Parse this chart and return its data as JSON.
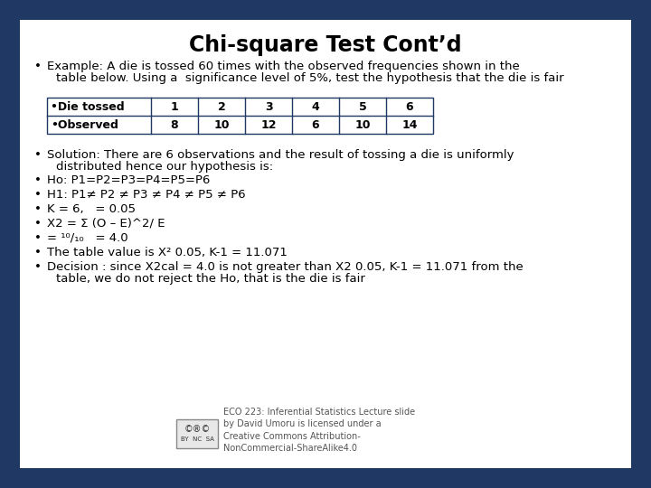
{
  "title": "Chi-square Test Cont’d",
  "outer_bg": "#1f3864",
  "inner_bg": "#ffffff",
  "border_color": "#1f3864",
  "title_color": "#000000",
  "title_fontsize": 17,
  "bullet_color": "#000000",
  "bullet_fontsize": 9.5,
  "table_header_row": [
    "•Die tossed",
    "1",
    "2",
    "3",
    "4",
    "5",
    "6"
  ],
  "table_data_row": [
    "•Observed",
    "8",
    "10",
    "12",
    "6",
    "10",
    "14"
  ],
  "footer_text": "ECO 223: Inferential Statistics Lecture slide\nby David Umoru is licensed under a\nCreative Commons Attribution-\nNonCommercial-ShareAlike4.0",
  "footer_fontsize": 7,
  "footer_color": "#555555"
}
